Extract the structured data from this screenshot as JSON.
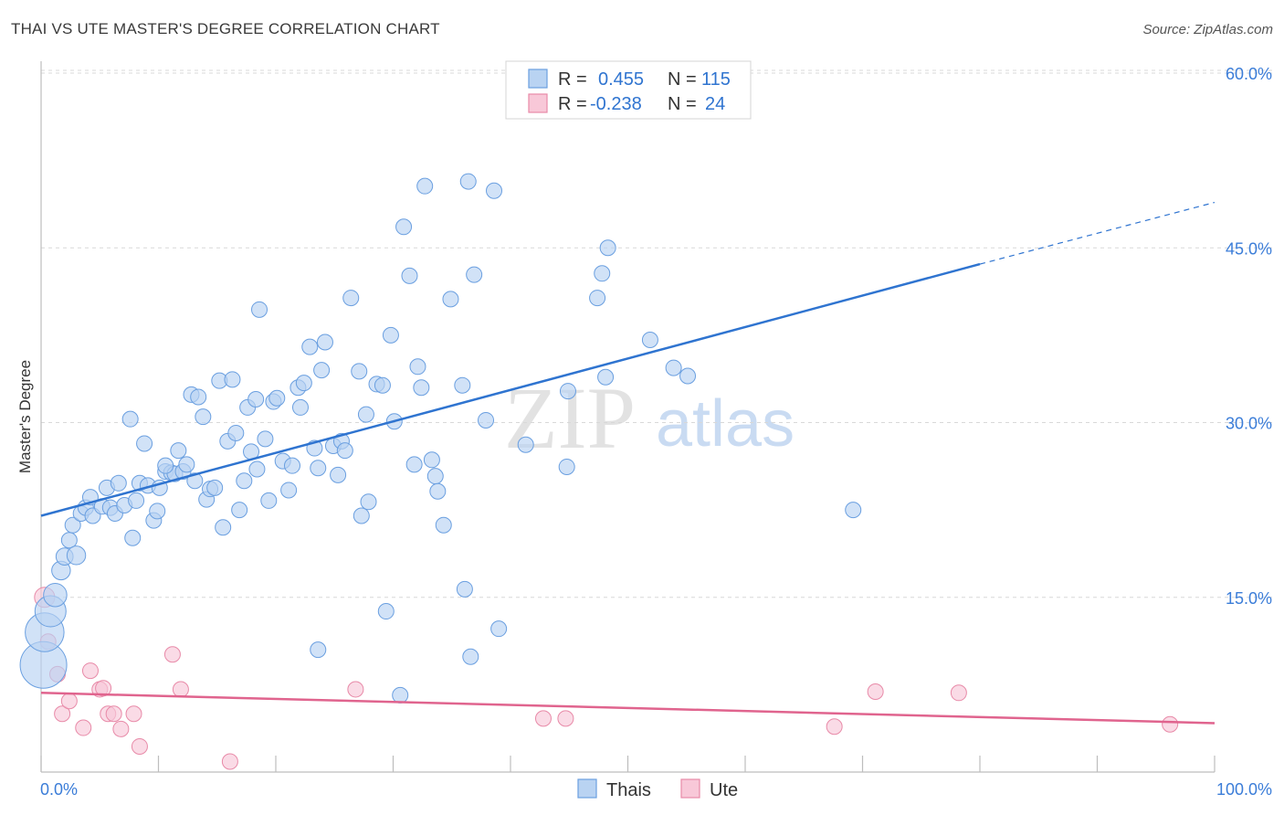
{
  "header": {
    "title": "THAI VS UTE MASTER'S DEGREE CORRELATION CHART",
    "source": "Source: ZipAtlas.com"
  },
  "watermark": {
    "zip": "ZIP",
    "atlas": "atlas"
  },
  "legend_box": {
    "rows": [
      {
        "r_label": "R =",
        "r_value": "0.455",
        "n_label": "N =",
        "n_value": "115"
      },
      {
        "r_label": "R =",
        "r_value": "-0.238",
        "n_label": "N =",
        "n_value": "24"
      }
    ]
  },
  "bottom_legend": {
    "thais": "Thais",
    "ute": "Ute"
  },
  "colors": {
    "thais_fill": "#b9d3f2",
    "thais_stroke": "#6a9fe0",
    "thais_line": "#2f74d0",
    "ute_fill": "#f8c8d8",
    "ute_stroke": "#e88aa8",
    "ute_line": "#e0648e",
    "grid": "#d8d8d8",
    "tick_text": "#3b7dd8"
  },
  "chart_data": {
    "type": "scatter",
    "title": "THAI VS UTE MASTER'S DEGREE CORRELATION CHART",
    "xlabel": "",
    "ylabel": "Master's Degree",
    "xlim": [
      0,
      100
    ],
    "ylim": [
      0,
      60
    ],
    "x_tick_labels": [
      "0.0%",
      "100.0%"
    ],
    "y_ticks": [
      15,
      30,
      45,
      60
    ],
    "y_tick_labels": [
      "15.0%",
      "30.0%",
      "45.0%",
      "60.0%"
    ],
    "grid": true,
    "series": [
      {
        "name": "Thais",
        "r": 0.455,
        "n": 115,
        "trend": {
          "x0": 0,
          "y0": 22.0,
          "x1": 80,
          "y1": 43.6,
          "dash_to_x": 100,
          "dash_to_y": 48.9
        },
        "points": [
          [
            0.2,
            9.2,
            3
          ],
          [
            0.3,
            12.0,
            2.5
          ],
          [
            0.8,
            13.8,
            2
          ],
          [
            1.2,
            15.2,
            1.5
          ],
          [
            1.7,
            17.3,
            1.2
          ],
          [
            2.0,
            18.5,
            1.1
          ],
          [
            2.4,
            19.9,
            1
          ],
          [
            3.0,
            18.6,
            1.2
          ],
          [
            2.7,
            21.2,
            1
          ],
          [
            3.4,
            22.2,
            1
          ],
          [
            3.8,
            22.7,
            1
          ],
          [
            4.2,
            23.6,
            1
          ],
          [
            4.4,
            22.0,
            1
          ],
          [
            5.2,
            22.8,
            1
          ],
          [
            5.6,
            24.4,
            1
          ],
          [
            5.9,
            22.7,
            1
          ],
          [
            6.3,
            22.2,
            1
          ],
          [
            6.6,
            24.8,
            1
          ],
          [
            7.1,
            22.9,
            1
          ],
          [
            7.6,
            30.3,
            1
          ],
          [
            7.8,
            20.1,
            1
          ],
          [
            8.1,
            23.3,
            1
          ],
          [
            8.4,
            24.8,
            1
          ],
          [
            8.8,
            28.2,
            1
          ],
          [
            9.1,
            24.6,
            1
          ],
          [
            9.6,
            21.6,
            1
          ],
          [
            9.9,
            22.4,
            1
          ],
          [
            10.1,
            24.4,
            1
          ],
          [
            10.6,
            25.8,
            1
          ],
          [
            11.1,
            25.7,
            1
          ],
          [
            11.4,
            25.6,
            1
          ],
          [
            11.7,
            27.6,
            1
          ],
          [
            12.1,
            25.8,
            1
          ],
          [
            12.4,
            26.4,
            1
          ],
          [
            12.8,
            32.4,
            1
          ],
          [
            13.1,
            25.0,
            1
          ],
          [
            13.4,
            32.2,
            1
          ],
          [
            13.8,
            30.5,
            1
          ],
          [
            14.1,
            23.4,
            1
          ],
          [
            14.4,
            24.3,
            1
          ],
          [
            14.8,
            24.4,
            1
          ],
          [
            15.2,
            33.6,
            1
          ],
          [
            15.5,
            21.0,
            1
          ],
          [
            15.9,
            28.4,
            1
          ],
          [
            16.3,
            33.7,
            1
          ],
          [
            16.6,
            29.1,
            1
          ],
          [
            16.9,
            22.5,
            1
          ],
          [
            17.3,
            25.0,
            1
          ],
          [
            17.6,
            31.3,
            1
          ],
          [
            17.9,
            27.5,
            1
          ],
          [
            18.3,
            32.0,
            1
          ],
          [
            18.6,
            39.7,
            1
          ],
          [
            19.1,
            28.6,
            1
          ],
          [
            19.4,
            23.3,
            1
          ],
          [
            19.8,
            31.8,
            1
          ],
          [
            20.1,
            32.1,
            1
          ],
          [
            20.6,
            26.7,
            1
          ],
          [
            21.1,
            24.2,
            1
          ],
          [
            21.4,
            26.3,
            1
          ],
          [
            21.9,
            33.0,
            1
          ],
          [
            22.1,
            31.3,
            1
          ],
          [
            22.4,
            33.4,
            1
          ],
          [
            22.9,
            36.5,
            1
          ],
          [
            23.3,
            27.8,
            1
          ],
          [
            23.6,
            26.1,
            1
          ],
          [
            23.9,
            34.5,
            1
          ],
          [
            24.2,
            36.9,
            1
          ],
          [
            24.9,
            28.0,
            1
          ],
          [
            25.3,
            25.5,
            1
          ],
          [
            25.6,
            28.4,
            1
          ],
          [
            25.9,
            27.6,
            1
          ],
          [
            26.4,
            40.7,
            1
          ],
          [
            27.1,
            34.4,
            1
          ],
          [
            27.3,
            22.0,
            1
          ],
          [
            27.7,
            30.7,
            1
          ],
          [
            27.9,
            23.2,
            1
          ],
          [
            28.6,
            33.3,
            1
          ],
          [
            29.1,
            33.2,
            1
          ],
          [
            29.4,
            13.8,
            1
          ],
          [
            29.8,
            37.5,
            1
          ],
          [
            30.1,
            30.1,
            1
          ],
          [
            30.6,
            6.6,
            1
          ],
          [
            30.9,
            46.8,
            1
          ],
          [
            31.4,
            42.6,
            1
          ],
          [
            31.8,
            26.4,
            1
          ],
          [
            32.1,
            34.8,
            1
          ],
          [
            32.4,
            33.0,
            1
          ],
          [
            32.7,
            50.3,
            1
          ],
          [
            33.3,
            26.8,
            1
          ],
          [
            33.6,
            25.4,
            1
          ],
          [
            33.8,
            24.1,
            1
          ],
          [
            34.3,
            21.2,
            1
          ],
          [
            34.9,
            40.6,
            1
          ],
          [
            35.9,
            33.2,
            1
          ],
          [
            36.1,
            15.7,
            1
          ],
          [
            36.4,
            50.7,
            1
          ],
          [
            36.6,
            9.9,
            1
          ],
          [
            36.9,
            42.7,
            1
          ],
          [
            37.9,
            30.2,
            1
          ],
          [
            38.6,
            49.9,
            1
          ],
          [
            39.0,
            12.3,
            1
          ],
          [
            41.3,
            28.1,
            1
          ],
          [
            44.8,
            26.2,
            1
          ],
          [
            44.9,
            32.7,
            1
          ],
          [
            47.4,
            40.7,
            1
          ],
          [
            47.8,
            42.8,
            1
          ],
          [
            48.1,
            33.9,
            1
          ],
          [
            48.3,
            45.0,
            1
          ],
          [
            51.9,
            37.1,
            1
          ],
          [
            53.9,
            34.7,
            1
          ],
          [
            55.1,
            34.0,
            1
          ],
          [
            69.2,
            22.5,
            1
          ],
          [
            23.6,
            10.5,
            1
          ],
          [
            18.4,
            26.0,
            1
          ],
          [
            10.6,
            26.3,
            1
          ]
        ]
      },
      {
        "name": "Ute",
        "r": -0.238,
        "n": 24,
        "trend": {
          "x0": 0,
          "y0": 6.8,
          "x1": 100,
          "y1": 4.2
        },
        "points": [
          [
            0.3,
            15.0,
            1.3
          ],
          [
            0.6,
            11.2,
            1
          ],
          [
            1.4,
            8.4,
            1
          ],
          [
            1.8,
            5.0,
            1
          ],
          [
            2.4,
            6.1,
            1
          ],
          [
            3.6,
            3.8,
            1
          ],
          [
            4.2,
            8.7,
            1
          ],
          [
            5.0,
            7.1,
            1
          ],
          [
            5.3,
            7.2,
            1
          ],
          [
            5.7,
            5.0,
            1
          ],
          [
            6.2,
            5.0,
            1
          ],
          [
            6.8,
            3.7,
            1
          ],
          [
            7.9,
            5.0,
            1
          ],
          [
            8.4,
            2.2,
            1
          ],
          [
            11.2,
            10.1,
            1
          ],
          [
            11.9,
            7.1,
            1
          ],
          [
            16.1,
            0.9,
            1
          ],
          [
            26.8,
            7.1,
            1
          ],
          [
            42.8,
            4.6,
            1
          ],
          [
            44.7,
            4.6,
            1
          ],
          [
            67.6,
            3.9,
            1
          ],
          [
            71.1,
            6.9,
            1
          ],
          [
            78.2,
            6.8,
            1
          ],
          [
            96.2,
            4.1,
            1
          ]
        ]
      }
    ]
  }
}
